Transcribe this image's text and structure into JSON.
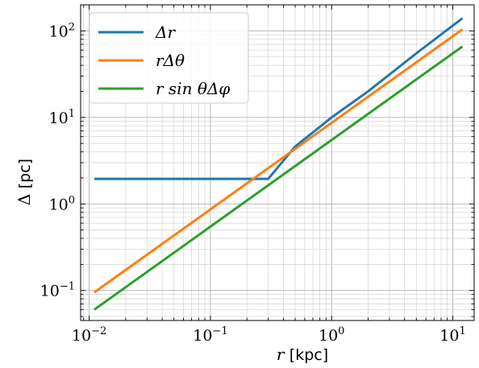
{
  "chart_data": {
    "type": "line",
    "xscale": "log",
    "yscale": "log",
    "xlim": [
      0.0085,
      15
    ],
    "ylim": [
      0.045,
      200
    ],
    "grid": true,
    "legend_position": "top-left",
    "xlabel": {
      "var": "r",
      "unit": "[kpc]"
    },
    "ylabel": {
      "var": "Δ",
      "unit": "[pc]"
    },
    "xticks": [
      {
        "value": 0.01,
        "base": "10",
        "exp": "−2"
      },
      {
        "value": 0.1,
        "base": "10",
        "exp": "−1"
      },
      {
        "value": 1,
        "base": "10",
        "exp": "0"
      },
      {
        "value": 10,
        "base": "10",
        "exp": "1"
      }
    ],
    "yticks": [
      {
        "value": 0.1,
        "base": "10",
        "exp": "−1"
      },
      {
        "value": 1,
        "base": "10",
        "exp": "0"
      },
      {
        "value": 10,
        "base": "10",
        "exp": "1"
      },
      {
        "value": 100,
        "base": "10",
        "exp": "2"
      }
    ],
    "series": [
      {
        "name": "Δr",
        "color": "#1f77b4",
        "x": [
          0.011,
          0.05,
          0.1,
          0.2,
          0.3,
          0.5,
          1,
          2,
          5,
          12
        ],
        "y": [
          1.95,
          1.95,
          1.95,
          1.95,
          1.95,
          4.6,
          10,
          20,
          55,
          140
        ]
      },
      {
        "name": "rΔθ",
        "color": "#ff7f0e",
        "x": [
          0.011,
          12
        ],
        "y": [
          0.095,
          104
        ]
      },
      {
        "name": "r sin θΔφ",
        "color": "#2ca02c",
        "x": [
          0.011,
          12
        ],
        "y": [
          0.06,
          66
        ]
      }
    ]
  }
}
